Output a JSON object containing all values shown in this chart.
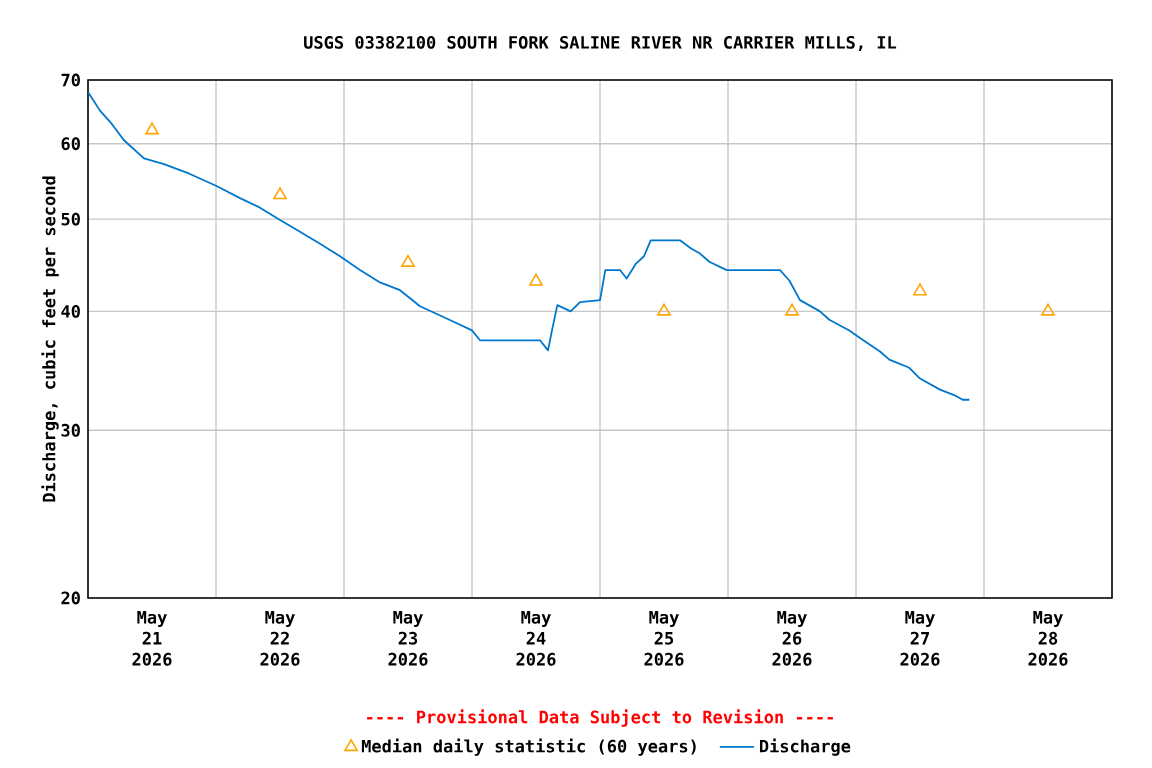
{
  "chart_data": {
    "type": "line",
    "title": "USGS 03382100 SOUTH FORK SALINE RIVER NR CARRIER MILLS, IL",
    "ylabel": "Discharge, cubic feet per second",
    "annotations": [
      "---- Provisional Data Subject to Revision ----"
    ],
    "log": "y",
    "grid": true,
    "legend": "bottom",
    "xlim": [
      "2026-05-21T00:00",
      "2026-05-29T00:00"
    ],
    "xticks": [
      {
        "value": "2026-05-22T00:00",
        "label": null
      },
      {
        "value": "2026-05-23T00:00",
        "label": null
      },
      {
        "value": "2026-05-24T00:00",
        "label": null
      },
      {
        "value": "2026-05-25T00:00",
        "label": null
      },
      {
        "value": "2026-05-26T00:00",
        "label": null
      },
      {
        "value": "2026-05-27T00:00",
        "label": null
      },
      {
        "value": "2026-05-28T00:00",
        "label": null
      },
      {
        "value": "2026-05-21T12:00",
        "label": "May 21 2026"
      },
      {
        "value": "2026-05-22T12:00",
        "label": "May 22 2026"
      },
      {
        "value": "2026-05-23T12:00",
        "label": "May 23 2026"
      },
      {
        "value": "2026-05-24T12:00",
        "label": "May 24 2026"
      },
      {
        "value": "2026-05-25T12:00",
        "label": "May 25 2026"
      },
      {
        "value": "2026-05-26T12:00",
        "label": "May 26 2026"
      },
      {
        "value": "2026-05-27T12:00",
        "label": "May 27 2026"
      },
      {
        "value": "2026-05-28T12:00",
        "label": "May 28 2026"
      }
    ],
    "ylim": [
      20,
      70
    ],
    "yticks": [
      20,
      30,
      40,
      50,
      60,
      70
    ],
    "series": [
      {
        "name": "Median daily statistic (60 years)",
        "type": "scatter",
        "marker": "triangle",
        "color": "#ffa500",
        "x": [
          "2026-05-21T12:00",
          "2026-05-22T12:00",
          "2026-05-23T12:00",
          "2026-05-24T12:00",
          "2026-05-25T12:00",
          "2026-05-26T12:00",
          "2026-05-27T12:00",
          "2026-05-28T12:00"
        ],
        "values": [
          62,
          53,
          45,
          43,
          40,
          40,
          42,
          40
        ]
      },
      {
        "name": "Discharge",
        "marker": "none",
        "color": "#0077cc",
        "x": [
          "2026-05-21T00:00",
          "2026-05-21T02:15",
          "2026-05-21T04:30",
          "2026-05-21T06:45",
          "2026-05-21T10:30",
          "2026-05-21T14:15",
          "2026-05-21T19:00",
          "2026-05-22T00:00",
          "2026-05-22T04:30",
          "2026-05-22T08:15",
          "2026-05-22T12:00",
          "2026-05-22T15:45",
          "2026-05-22T19:30",
          "2026-05-22T23:15",
          "2026-05-23T03:00",
          "2026-05-23T06:45",
          "2026-05-23T10:30",
          "2026-05-23T14:15",
          "2026-05-23T19:45",
          "2026-05-24T00:00",
          "2026-05-24T01:30",
          "2026-05-24T12:45",
          "2026-05-24T14:15",
          "2026-05-24T15:00",
          "2026-05-24T16:00",
          "2026-05-24T18:30",
          "2026-05-24T20:15",
          "2026-05-25T00:00",
          "2026-05-25T01:00",
          "2026-05-25T03:45",
          "2026-05-25T05:00",
          "2026-05-25T06:45",
          "2026-05-25T08:15",
          "2026-05-25T09:30",
          "2026-05-25T15:00",
          "2026-05-25T17:00",
          "2026-05-25T18:45",
          "2026-05-25T20:30",
          "2026-05-25T23:45",
          "2026-05-26T09:45",
          "2026-05-26T11:30",
          "2026-05-26T13:30",
          "2026-05-26T17:15",
          "2026-05-26T19:00",
          "2026-05-26T22:45",
          "2026-05-27T00:45",
          "2026-05-27T04:30",
          "2026-05-27T06:15",
          "2026-05-27T10:00",
          "2026-05-27T12:00",
          "2026-05-27T15:45",
          "2026-05-27T18:45",
          "2026-05-27T20:00",
          "2026-05-27T21:15"
        ],
        "values": [
          68.0,
          65.0,
          62.9,
          60.5,
          57.9,
          57.1,
          55.8,
          54.2,
          52.6,
          51.4,
          49.9,
          48.5,
          47.1,
          45.7,
          44.2,
          42.9,
          42.1,
          40.5,
          39.2,
          38.2,
          37.3,
          37.3,
          36.4,
          38.2,
          40.6,
          40.0,
          40.9,
          41.1,
          44.2,
          44.2,
          43.3,
          44.9,
          45.7,
          47.5,
          47.5,
          46.6,
          46.0,
          45.1,
          44.2,
          44.2,
          43.1,
          41.1,
          40.0,
          39.2,
          38.2,
          37.5,
          36.3,
          35.6,
          34.9,
          34.0,
          33.1,
          32.6,
          32.3,
          32.3
        ]
      }
    ]
  }
}
